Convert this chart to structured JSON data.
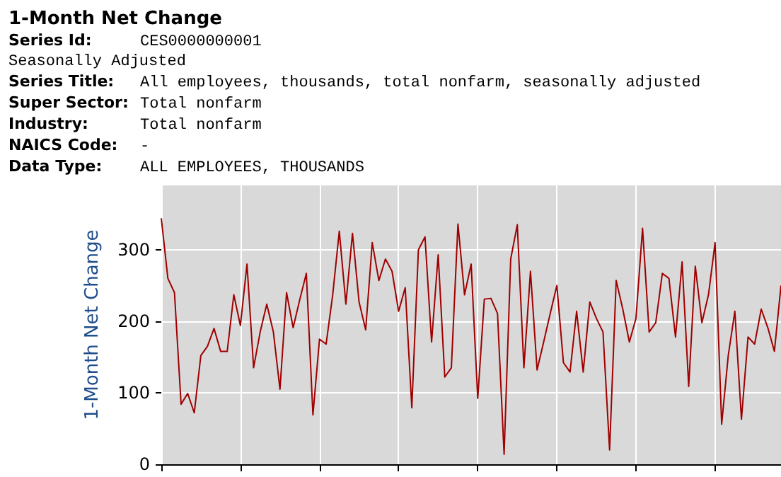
{
  "chart_data": {
    "type": "line",
    "title": "1-Month Net Change",
    "annotations": [
      "Series Id: CES0000000001",
      "Seasonally Adjusted",
      "Series Title: All employees, thousands, total nonfarm, seasonally adjusted",
      "Super Sector: Total nonfarm",
      "Industry: Total nonfarm",
      "NAICS Code: -",
      "Data Type: ALL EMPLOYEES, THOUSANDS"
    ],
    "ylabel": "1-Month Net Change",
    "categories": [
      null,
      null,
      null,
      null,
      null,
      null,
      null,
      null,
      null,
      null,
      null,
      null,
      null,
      null,
      null,
      null,
      null,
      null,
      null,
      null,
      null,
      null,
      null,
      null,
      null,
      null,
      null,
      null,
      null,
      null,
      null,
      null,
      null,
      null,
      null,
      null,
      null,
      null,
      null,
      null,
      null,
      null,
      null,
      null,
      null,
      null,
      null,
      null,
      null,
      null,
      null,
      null,
      null,
      null,
      null,
      null,
      null,
      null,
      null,
      null,
      null,
      null,
      null,
      null,
      null,
      null,
      null,
      null,
      null,
      null,
      null,
      null,
      null,
      null,
      null,
      null,
      null,
      null,
      null,
      null,
      null,
      null,
      null,
      null,
      null,
      null,
      null,
      null,
      null,
      null,
      null,
      null,
      null,
      null,
      null
    ],
    "series": [
      {
        "color": "#a00000",
        "values": [
          344,
          260,
          240,
          84,
          99,
          72,
          152,
          165,
          190,
          158,
          158,
          237,
          194,
          280,
          135,
          185,
          224,
          185,
          105,
          240,
          191,
          230,
          267,
          69,
          175,
          168,
          237,
          326,
          224,
          323,
          227,
          188,
          310,
          257,
          287,
          270,
          214,
          247,
          79,
          300,
          318,
          171,
          293,
          122,
          135,
          336,
          237,
          280,
          92,
          231,
          232,
          211,
          14,
          287,
          335,
          135,
          270,
          132,
          171,
          211,
          250,
          142,
          129,
          214,
          129,
          227,
          204,
          185,
          20,
          257,
          217,
          171,
          204,
          330,
          185,
          198,
          267,
          260,
          178,
          283,
          109,
          277,
          198,
          237,
          310,
          56,
          152,
          214,
          63,
          178,
          168,
          217,
          191,
          158,
          250
        ]
      }
    ],
    "ylim": [
      0,
      390
    ],
    "yticks": [
      0,
      100,
      200,
      300
    ],
    "grid": true,
    "tick_labels": "y",
    "line_style": "solid"
  }
}
